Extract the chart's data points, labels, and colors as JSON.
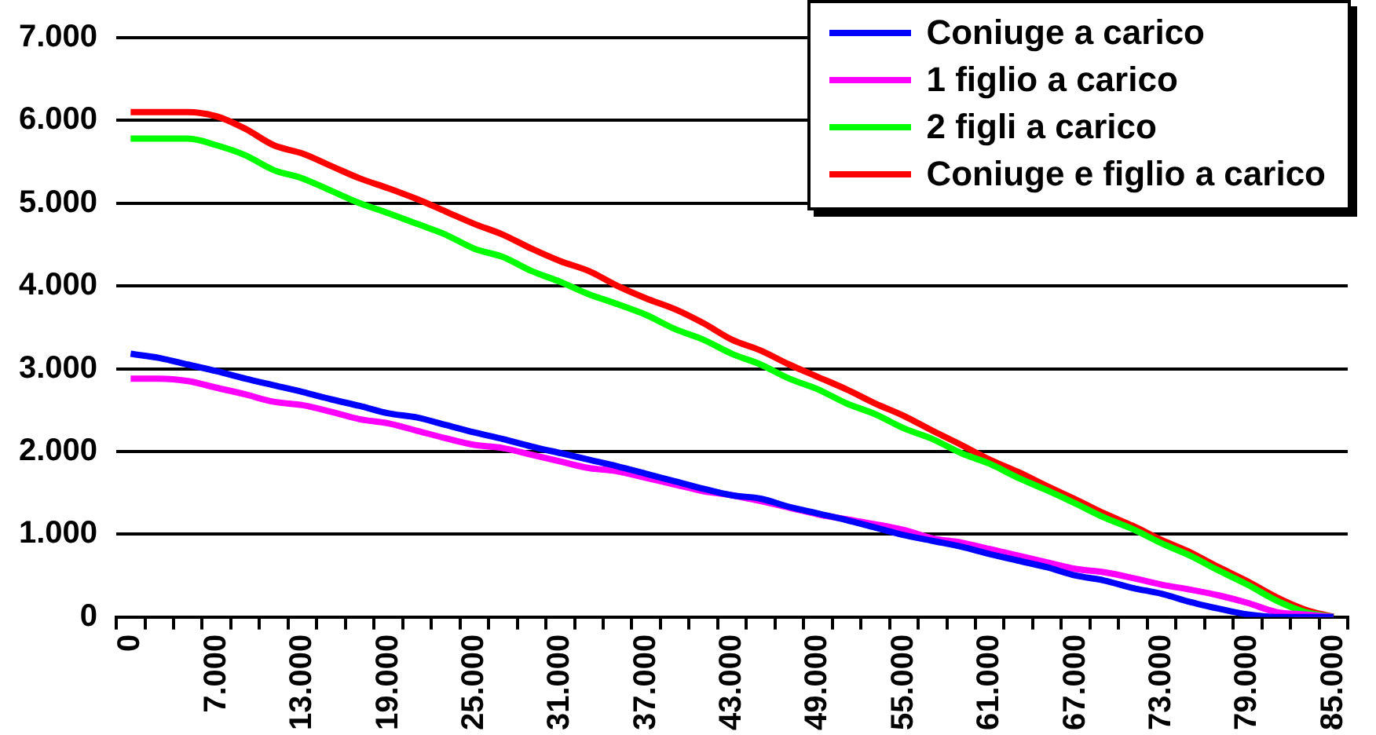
{
  "chart_data": {
    "type": "line",
    "categories": [
      "0",
      null,
      null,
      "7.000",
      null,
      null,
      "13.000",
      null,
      null,
      "19.000",
      null,
      null,
      "25.000",
      null,
      null,
      "31.000",
      null,
      null,
      "37.000",
      null,
      null,
      "43.000",
      null,
      null,
      "49.000",
      null,
      null,
      "55.000",
      null,
      null,
      "61.000",
      null,
      null,
      "67.000",
      null,
      null,
      "73.000",
      null,
      null,
      "79.000",
      null,
      null,
      "85.000"
    ],
    "series": [
      {
        "name": "Coniuge a carico",
        "color": "#0000ff",
        "values": [
          3180,
          3130,
          3050,
          2970,
          2880,
          2800,
          2720,
          2630,
          2550,
          2460,
          2410,
          2320,
          2230,
          2150,
          2060,
          1980,
          1900,
          1820,
          1730,
          1640,
          1550,
          1470,
          1430,
          1330,
          1250,
          1170,
          1080,
          990,
          920,
          850,
          760,
          680,
          600,
          500,
          440,
          350,
          280,
          180,
          100,
          30,
          0,
          0,
          0
        ]
      },
      {
        "name": "1 figlio a carico",
        "color": "#ff00ff",
        "values": [
          2880,
          2880,
          2850,
          2770,
          2690,
          2600,
          2560,
          2480,
          2390,
          2340,
          2250,
          2160,
          2080,
          2040,
          1960,
          1880,
          1800,
          1760,
          1680,
          1600,
          1520,
          1470,
          1400,
          1320,
          1240,
          1180,
          1120,
          1050,
          950,
          900,
          820,
          740,
          660,
          580,
          540,
          470,
          390,
          330,
          260,
          170,
          60,
          30,
          0
        ]
      },
      {
        "name": "2 figli a carico",
        "color": "#00ff00",
        "values": [
          5780,
          5780,
          5780,
          5700,
          5580,
          5400,
          5300,
          5150,
          5000,
          4880,
          4750,
          4620,
          4450,
          4350,
          4180,
          4050,
          3900,
          3780,
          3650,
          3480,
          3350,
          3180,
          3050,
          2880,
          2750,
          2580,
          2450,
          2280,
          2150,
          1980,
          1850,
          1680,
          1530,
          1370,
          1200,
          1060,
          890,
          740,
          560,
          390,
          200,
          60,
          0
        ]
      },
      {
        "name": "Coniuge e figlio a carico",
        "color": "#ff0000",
        "values": [
          6100,
          6100,
          6100,
          6050,
          5900,
          5700,
          5600,
          5450,
          5300,
          5180,
          5050,
          4900,
          4750,
          4620,
          4450,
          4300,
          4180,
          4000,
          3850,
          3720,
          3550,
          3350,
          3220,
          3050,
          2900,
          2750,
          2580,
          2430,
          2250,
          2080,
          1900,
          1750,
          1580,
          1420,
          1250,
          1100,
          930,
          780,
          600,
          430,
          240,
          90,
          0
        ]
      }
    ],
    "ylim": [
      0,
      7000
    ],
    "yticks": [
      {
        "value": 0,
        "label": "0"
      },
      {
        "value": 1000,
        "label": "1.000"
      },
      {
        "value": 2000,
        "label": "2.000"
      },
      {
        "value": 3000,
        "label": "3.000"
      },
      {
        "value": 4000,
        "label": "4.000"
      },
      {
        "value": 5000,
        "label": "5.000"
      },
      {
        "value": 6000,
        "label": "6.000"
      },
      {
        "value": 7000,
        "label": "7.000"
      }
    ],
    "grid": "y",
    "legend": "top right"
  }
}
